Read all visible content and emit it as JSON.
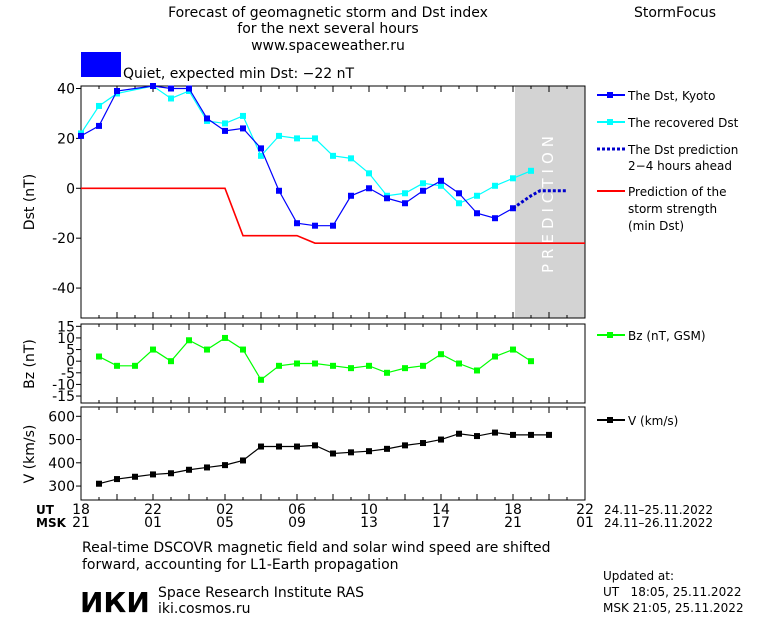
{
  "header": {
    "title_line1": "Forecast of geomagnetic storm and Dst index",
    "title_line2": "for the next several hours",
    "site": "www.spaceweather.ru",
    "brand": "StormFocus",
    "status_text": "Quiet, expected min Dst: −22 nT",
    "status_color": "#0000ff"
  },
  "colors": {
    "dst": "#0000ff",
    "recovered": "#00ffff",
    "prediction_band": "#d3d3d3",
    "storm_strength": "#ff0000",
    "bz": "#00ff00",
    "v": "#000000"
  },
  "prediction_label": "PREDICTION",
  "time_axis": {
    "ut_label": "UT",
    "msk_label": "MSK",
    "ut_ticks": [
      "18",
      "22",
      "02",
      "06",
      "10",
      "14",
      "18",
      "22"
    ],
    "msk_ticks": [
      "21",
      "01",
      "05",
      "09",
      "13",
      "17",
      "21",
      "01"
    ],
    "ut_range": "24.11–25.11.2022",
    "msk_range": "24.11–26.11.2022"
  },
  "footer": {
    "note_line1": "Real-time DSCOVR magnetic field and solar wind speed are shifted",
    "note_line2": "forward, accounting for L1-Earth propagation",
    "institute": "Space Research Institute RAS",
    "institute_url": "iki.cosmos.ru",
    "logo_text": "ИКИ",
    "updated_label": "Updated at:",
    "updated_ut": "UT   18:05, 25.11.2022",
    "updated_msk": "MSK 21:05, 25.11.2022"
  },
  "chart_data": [
    {
      "type": "line",
      "name": "dst-panel",
      "ylabel": "Dst (nT)",
      "ylim": [
        -52,
        41
      ],
      "yticks": [
        40,
        20,
        0,
        -20,
        -40
      ],
      "xlim": [
        0,
        28
      ],
      "prediction_start": 24,
      "series": [
        {
          "name": "The Dst, Kyoto",
          "x": [
            0,
            1,
            2,
            4,
            5,
            6,
            7,
            8,
            9,
            10,
            11,
            12,
            13,
            14,
            15,
            16,
            17,
            18,
            19,
            20,
            21,
            22,
            23,
            24
          ],
          "y": [
            21,
            25,
            39,
            41,
            40,
            40,
            28,
            23,
            24,
            16,
            -1,
            -14,
            -15,
            -15,
            -3,
            0,
            -4,
            -6,
            -1,
            3,
            -2,
            -10,
            -12,
            -8
          ]
        },
        {
          "name": "The recovered Dst",
          "x": [
            0,
            1,
            2,
            4,
            5,
            6,
            7,
            8,
            9,
            10,
            11,
            12,
            13,
            14,
            15,
            16,
            17,
            18,
            19,
            20,
            21,
            22,
            23,
            24,
            25
          ],
          "y": [
            22,
            33,
            38,
            41,
            36,
            39,
            27,
            26,
            29,
            13,
            21,
            20,
            20,
            13,
            12,
            6,
            -3,
            -2,
            2,
            1,
            -6,
            -3,
            1,
            4,
            7
          ]
        },
        {
          "name": "The Dst prediction 2–4 hours ahead",
          "x": [
            24,
            25,
            25.5,
            26,
            27
          ],
          "y": [
            -8,
            -3,
            -1,
            -1,
            -1
          ]
        },
        {
          "name": "Prediction of the storm strength (min Dst)",
          "x": [
            0,
            8,
            9,
            12,
            13,
            28
          ],
          "y": [
            0,
            0,
            -19,
            -19,
            -22,
            -22
          ]
        }
      ]
    },
    {
      "type": "line",
      "name": "bz-panel",
      "ylabel": "Bz (nT)",
      "ylim": [
        -18,
        16
      ],
      "yticks": [
        15,
        10,
        5,
        0,
        -5,
        -10,
        -15
      ],
      "series": [
        {
          "name": "Bz (nT, GSM)",
          "x": [
            1,
            2,
            3,
            4,
            5,
            6,
            7,
            8,
            9,
            10,
            11,
            12,
            13,
            14,
            15,
            16,
            17,
            18,
            19,
            20,
            21,
            22,
            23,
            24,
            25
          ],
          "y": [
            2,
            -2,
            -2,
            5,
            0,
            9,
            5,
            10,
            5,
            -8,
            -2,
            -1,
            -1,
            -2,
            -3,
            -2,
            -5,
            -3,
            -2,
            3,
            -1,
            -4,
            2,
            5,
            0
          ]
        }
      ],
      "extra_point": {
        "x": 26,
        "y": 2
      }
    },
    {
      "type": "line",
      "name": "v-panel",
      "ylabel": "V (km/s)",
      "ylim": [
        240,
        640
      ],
      "yticks": [
        600,
        500,
        400,
        300
      ],
      "series": [
        {
          "name": "V (km/s)",
          "x": [
            1,
            2,
            3,
            4,
            5,
            6,
            7,
            8,
            9,
            10,
            11,
            12,
            13,
            14,
            15,
            16,
            17,
            18,
            19,
            20,
            21,
            22,
            23,
            24,
            25,
            26
          ],
          "y": [
            310,
            330,
            340,
            350,
            355,
            370,
            380,
            390,
            410,
            470,
            470,
            470,
            475,
            440,
            445,
            450,
            460,
            475,
            485,
            500,
            525,
            515,
            530,
            520,
            520,
            520
          ]
        }
      ]
    }
  ]
}
